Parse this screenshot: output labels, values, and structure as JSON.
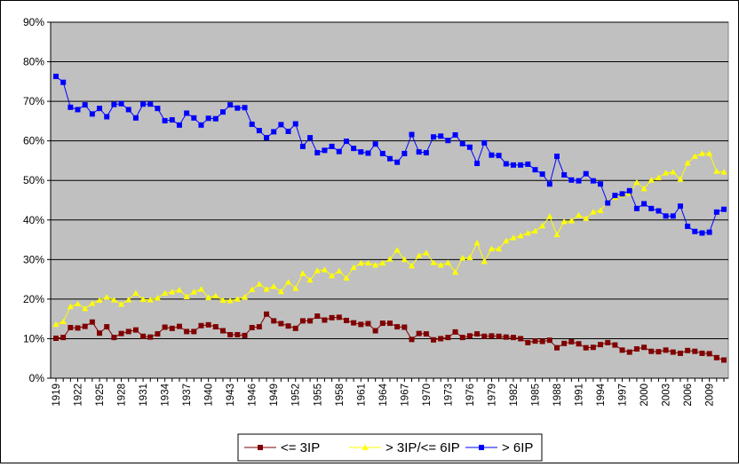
{
  "colors": {
    "plot_background": "#c0c0c0",
    "gridline": "#000000",
    "le3ip": "#800000",
    "mid": "#ffff00",
    "gt6ip": "#0000ff"
  },
  "chart_data": {
    "type": "line",
    "title": "",
    "xlabel": "",
    "ylabel": "",
    "ylim": [
      0,
      0.9
    ],
    "grid": true,
    "legend_position": "bottom",
    "y_ticks": [
      "0%",
      "10%",
      "20%",
      "30%",
      "40%",
      "50%",
      "60%",
      "70%",
      "80%",
      "90%"
    ],
    "x_tick_labels": [
      "1919",
      "1922",
      "1925",
      "1928",
      "1931",
      "1934",
      "1937",
      "1940",
      "1943",
      "1946",
      "1949",
      "1952",
      "1955",
      "1958",
      "1961",
      "1964",
      "1967",
      "1970",
      "1973",
      "1976",
      "1979",
      "1982",
      "1985",
      "1988",
      "1991",
      "1994",
      "1997",
      "2000",
      "2003",
      "2006",
      "2009"
    ],
    "x": [
      1919,
      1920,
      1921,
      1922,
      1923,
      1924,
      1925,
      1926,
      1927,
      1928,
      1929,
      1930,
      1931,
      1932,
      1933,
      1934,
      1935,
      1936,
      1937,
      1938,
      1939,
      1940,
      1941,
      1942,
      1943,
      1944,
      1945,
      1946,
      1947,
      1948,
      1949,
      1950,
      1951,
      1952,
      1953,
      1954,
      1955,
      1956,
      1957,
      1958,
      1959,
      1960,
      1961,
      1962,
      1963,
      1964,
      1965,
      1966,
      1967,
      1968,
      1969,
      1970,
      1971,
      1972,
      1973,
      1974,
      1975,
      1976,
      1977,
      1978,
      1979,
      1980,
      1981,
      1982,
      1983,
      1984,
      1985,
      1986,
      1987,
      1988,
      1989,
      1990,
      1991,
      1992,
      1993,
      1994,
      1995,
      1996,
      1997,
      1998,
      1999,
      2000,
      2001,
      2002,
      2003,
      2004,
      2005,
      2006,
      2007,
      2008,
      2009,
      2010,
      2011
    ],
    "series": [
      {
        "name": "<= 3IP",
        "color": "#800000",
        "marker": "square",
        "values": [
          0.101,
          0.103,
          0.128,
          0.127,
          0.131,
          0.142,
          0.114,
          0.13,
          0.103,
          0.113,
          0.118,
          0.122,
          0.106,
          0.104,
          0.112,
          0.129,
          0.126,
          0.131,
          0.118,
          0.118,
          0.133,
          0.135,
          0.13,
          0.12,
          0.11,
          0.11,
          0.108,
          0.128,
          0.13,
          0.162,
          0.145,
          0.138,
          0.132,
          0.126,
          0.145,
          0.145,
          0.157,
          0.147,
          0.153,
          0.154,
          0.146,
          0.14,
          0.136,
          0.138,
          0.12,
          0.139,
          0.139,
          0.13,
          0.129,
          0.098,
          0.113,
          0.112,
          0.097,
          0.1,
          0.103,
          0.117,
          0.103,
          0.107,
          0.112,
          0.106,
          0.107,
          0.106,
          0.104,
          0.103,
          0.1,
          0.09,
          0.094,
          0.093,
          0.096,
          0.077,
          0.088,
          0.092,
          0.087,
          0.077,
          0.078,
          0.085,
          0.09,
          0.084,
          0.071,
          0.066,
          0.074,
          0.078,
          0.068,
          0.067,
          0.071,
          0.066,
          0.063,
          0.07,
          0.068,
          0.063,
          0.062,
          0.052,
          0.046
        ]
      },
      {
        "name": "> 3IP/<= 6IP",
        "color": "#ffff00",
        "marker": "triangle",
        "values": [
          0.136,
          0.143,
          0.181,
          0.188,
          0.176,
          0.189,
          0.197,
          0.205,
          0.198,
          0.187,
          0.198,
          0.215,
          0.199,
          0.198,
          0.203,
          0.215,
          0.218,
          0.223,
          0.206,
          0.218,
          0.225,
          0.204,
          0.208,
          0.197,
          0.196,
          0.2,
          0.205,
          0.224,
          0.238,
          0.225,
          0.232,
          0.219,
          0.243,
          0.227,
          0.265,
          0.248,
          0.272,
          0.274,
          0.259,
          0.271,
          0.253,
          0.28,
          0.291,
          0.291,
          0.286,
          0.291,
          0.301,
          0.324,
          0.3,
          0.284,
          0.31,
          0.317,
          0.292,
          0.286,
          0.292,
          0.268,
          0.304,
          0.305,
          0.342,
          0.295,
          0.327,
          0.327,
          0.347,
          0.355,
          0.36,
          0.367,
          0.372,
          0.385,
          0.409,
          0.363,
          0.396,
          0.398,
          0.412,
          0.404,
          0.42,
          0.424,
          0.446,
          0.457,
          0.463,
          0.467,
          0.495,
          0.479,
          0.501,
          0.507,
          0.519,
          0.521,
          0.503,
          0.544,
          0.561,
          0.568,
          0.568,
          0.523,
          0.521
        ]
      },
      {
        "name": "> 6IP",
        "color": "#0000ff",
        "marker": "square",
        "values": [
          0.763,
          0.748,
          0.685,
          0.679,
          0.691,
          0.668,
          0.682,
          0.661,
          0.692,
          0.694,
          0.679,
          0.658,
          0.693,
          0.693,
          0.682,
          0.651,
          0.653,
          0.64,
          0.67,
          0.658,
          0.64,
          0.657,
          0.656,
          0.673,
          0.691,
          0.683,
          0.684,
          0.642,
          0.626,
          0.608,
          0.623,
          0.641,
          0.624,
          0.643,
          0.586,
          0.608,
          0.57,
          0.576,
          0.586,
          0.573,
          0.599,
          0.581,
          0.572,
          0.569,
          0.592,
          0.568,
          0.555,
          0.546,
          0.568,
          0.616,
          0.572,
          0.57,
          0.61,
          0.612,
          0.601,
          0.615,
          0.593,
          0.584,
          0.543,
          0.595,
          0.564,
          0.563,
          0.542,
          0.539,
          0.539,
          0.541,
          0.527,
          0.516,
          0.491,
          0.561,
          0.514,
          0.501,
          0.499,
          0.517,
          0.499,
          0.491,
          0.443,
          0.462,
          0.466,
          0.474,
          0.429,
          0.441,
          0.429,
          0.423,
          0.41,
          0.41,
          0.435,
          0.384,
          0.371,
          0.367,
          0.369,
          0.42,
          0.427
        ]
      }
    ]
  }
}
